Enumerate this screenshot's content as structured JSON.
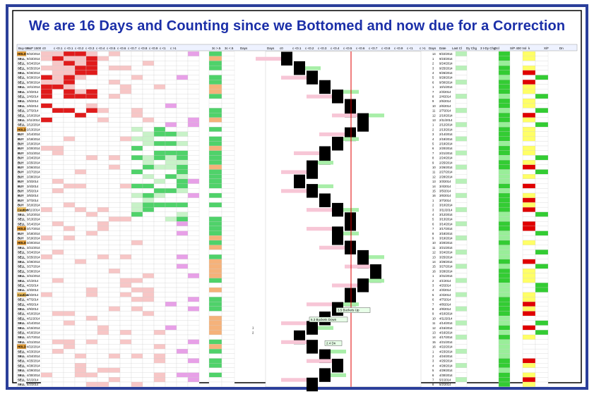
{
  "title": "We are 16 Days and Counting since we Bottomed and now due for a Correction",
  "colors": {
    "frame_blue": "#2b3f9a",
    "title_blue": "#1b2fa8",
    "hold": "#e8a13a",
    "sell": "#ffffff",
    "buy": "#ffffff",
    "heat_red": "#e01b1b",
    "heat_pink": "#f7c6c6",
    "heat_green": "#4fd26a",
    "heat_light_green": "#c8f2c8",
    "heat_magenta": "#e7a0e7",
    "black_bar": "#000000",
    "red_line": "#e00000"
  },
  "left_table": {
    "header": [
      "Buy-Se",
      "S&P 1500",
      "c0",
      "c <0.1",
      "c <0.1",
      "c <0.2",
      "c <0.3",
      "c <0.4",
      "c <0.5",
      "c <0.6",
      "c <0.7",
      "c <0.8",
      "c <0.9",
      "c <1",
      "c >1"
    ],
    "rows": [
      {
        "signal": "HOLD",
        "date": "9/22/2014"
      },
      {
        "signal": "SELL",
        "date": "9/23/2014"
      },
      {
        "signal": "SELL",
        "date": "9/24/2014"
      },
      {
        "signal": "SELL",
        "date": "9/25/2014"
      },
      {
        "signal": "SELL",
        "date": "9/26/2014"
      },
      {
        "signal": "SELL",
        "date": "9/29/2014"
      },
      {
        "signal": "SELL",
        "date": "9/30/2014"
      },
      {
        "signal": "SELL",
        "date": "10/1/2014"
      },
      {
        "signal": "SELL",
        "date": "2/3/2014"
      },
      {
        "signal": "SELL",
        "date": "2/4/2014"
      },
      {
        "signal": "SELL",
        "date": "2/5/2014"
      },
      {
        "signal": "SELL",
        "date": "2/6/2014"
      },
      {
        "signal": "SELL",
        "date": "2/7/2014"
      },
      {
        "signal": "SELL",
        "date": "2/10/2014"
      },
      {
        "signal": "SELL",
        "date": "2/11/2014"
      },
      {
        "signal": "SELL",
        "date": "2/12/2014"
      },
      {
        "signal": "HOLD",
        "date": "2/13/2014"
      },
      {
        "signal": "BUY",
        "date": "2/14/2014"
      },
      {
        "signal": "BUY",
        "date": "2/18/2014"
      },
      {
        "signal": "BUY",
        "date": "2/19/2014"
      },
      {
        "signal": "BUY",
        "date": "2/20/2014"
      },
      {
        "signal": "BUY",
        "date": "2/21/2014"
      },
      {
        "signal": "BUY",
        "date": "2/24/2014"
      },
      {
        "signal": "BUY",
        "date": "2/25/2014"
      },
      {
        "signal": "BUY",
        "date": "2/26/2014"
      },
      {
        "signal": "BUY",
        "date": "2/27/2014"
      },
      {
        "signal": "BUY",
        "date": "2/28/2014"
      },
      {
        "signal": "BUY",
        "date": "3/3/2014"
      },
      {
        "signal": "BUY",
        "date": "3/4/2014"
      },
      {
        "signal": "BUY",
        "date": "3/5/2014"
      },
      {
        "signal": "BUY",
        "date": "3/6/2014"
      },
      {
        "signal": "BUY",
        "date": "3/7/2014"
      },
      {
        "signal": "BUY",
        "date": "3/10/2014"
      },
      {
        "signal": "Caution",
        "date": "3/11/2014"
      },
      {
        "signal": "SELL",
        "date": "3/12/2014"
      },
      {
        "signal": "SELL",
        "date": "3/13/2014"
      },
      {
        "signal": "SELL",
        "date": "3/14/2014"
      },
      {
        "signal": "HOLD",
        "date": "3/17/2014"
      },
      {
        "signal": "BUY",
        "date": "3/18/2014"
      },
      {
        "signal": "BUY",
        "date": "3/19/2014"
      },
      {
        "signal": "HOLD",
        "date": "3/20/2014"
      },
      {
        "signal": "SELL",
        "date": "3/21/2014"
      },
      {
        "signal": "SELL",
        "date": "3/24/2014"
      },
      {
        "signal": "SELL",
        "date": "3/25/2014"
      },
      {
        "signal": "SELL",
        "date": "3/26/2014"
      },
      {
        "signal": "SELL",
        "date": "3/27/2014"
      },
      {
        "signal": "SELL",
        "date": "3/28/2014"
      },
      {
        "signal": "SELL",
        "date": "3/31/2014"
      },
      {
        "signal": "SELL",
        "date": "4/1/2014"
      },
      {
        "signal": "SELL",
        "date": "4/2/2014"
      },
      {
        "signal": "SELL",
        "date": "4/3/2014"
      },
      {
        "signal": "Caution",
        "date": "4/4/2014"
      },
      {
        "signal": "SELL",
        "date": "4/7/2014"
      },
      {
        "signal": "SELL",
        "date": "4/8/2014"
      },
      {
        "signal": "SELL",
        "date": "4/9/2014"
      },
      {
        "signal": "SELL",
        "date": "4/10/2014"
      },
      {
        "signal": "SELL",
        "date": "4/11/2014"
      },
      {
        "signal": "SELL",
        "date": "4/14/2014"
      },
      {
        "signal": "SELL",
        "date": "4/15/2014"
      },
      {
        "signal": "SELL",
        "date": "4/16/2014"
      },
      {
        "signal": "SELL",
        "date": "4/17/2014"
      },
      {
        "signal": "SELL",
        "date": "4/21/2014"
      },
      {
        "signal": "HOLD",
        "date": "4/22/2014"
      },
      {
        "signal": "SELL",
        "date": "4/23/2014"
      },
      {
        "signal": "SELL",
        "date": "4/24/2014"
      },
      {
        "signal": "SELL",
        "date": "4/25/2014"
      },
      {
        "signal": "SELL",
        "date": "4/28/2014"
      },
      {
        "signal": "SELL",
        "date": "4/29/2014"
      },
      {
        "signal": "SELL",
        "date": "4/30/2014"
      },
      {
        "signal": "SELL",
        "date": "5/1/2014"
      },
      {
        "signal": "SELL",
        "date": "5/2/2014"
      }
    ]
  },
  "mid_table": {
    "header": [
      "3c >.5",
      "3c <.5",
      "Days"
    ]
  },
  "bar_chart": {
    "header": [
      "Days",
      "c0",
      "c <0.1",
      "c <0.2",
      "c <0.3",
      "c <0.4",
      "c <0.5",
      "c <0.6",
      "c <0.7",
      "c <0.8",
      "c <0.9",
      "c <1",
      "c >1"
    ],
    "annotations": [
      {
        "text": "3.5 Buckets Up"
      },
      {
        "text": "6.3 Buckets Down"
      },
      {
        "text": "2.4 Dn"
      }
    ]
  },
  "right_table": {
    "header": [
      "Days",
      "Date",
      "Last Cl",
      "Dy Chg",
      "3 t-Dy Chg",
      "Ocl",
      "S/P 400 Vol",
      "k",
      "X/F",
      "Dn"
    ]
  },
  "chart_data": {
    "type": "table",
    "title": "We are 16 Days and Counting since we Bottomed and now due for a Correction",
    "days_counter": [
      14,
      1,
      2,
      3,
      4,
      5,
      6,
      1,
      7,
      8,
      9,
      10,
      11,
      12,
      13,
      1,
      2,
      3,
      4,
      5,
      6,
      7,
      8,
      9,
      10,
      11,
      12,
      13,
      14,
      15,
      16,
      1,
      2,
      3,
      4,
      5,
      6,
      7,
      8,
      9,
      10,
      11,
      12,
      13,
      14,
      15,
      16,
      1,
      2,
      3,
      4,
      5,
      6,
      7,
      8,
      9,
      10,
      11,
      12,
      13,
      14,
      15,
      16,
      1,
      2,
      3,
      4,
      5,
      6,
      7,
      8
    ],
    "series": [
      {
        "values": [
          0,
          0,
          1,
          1,
          2,
          2,
          3,
          3,
          4,
          4,
          5,
          5,
          5,
          6,
          6,
          6,
          5,
          5,
          4,
          4,
          3,
          3,
          3,
          2,
          2,
          2,
          1,
          1,
          2,
          2,
          3,
          3,
          4,
          4,
          5,
          5,
          5,
          4,
          4,
          4,
          5,
          5,
          6,
          6,
          6,
          7,
          7,
          7,
          6,
          6,
          5,
          5,
          5,
          4,
          4,
          3,
          3,
          2,
          2,
          1,
          1,
          2,
          2,
          3,
          3,
          4,
          4,
          3,
          3,
          2,
          2
        ]
      }
    ]
  }
}
